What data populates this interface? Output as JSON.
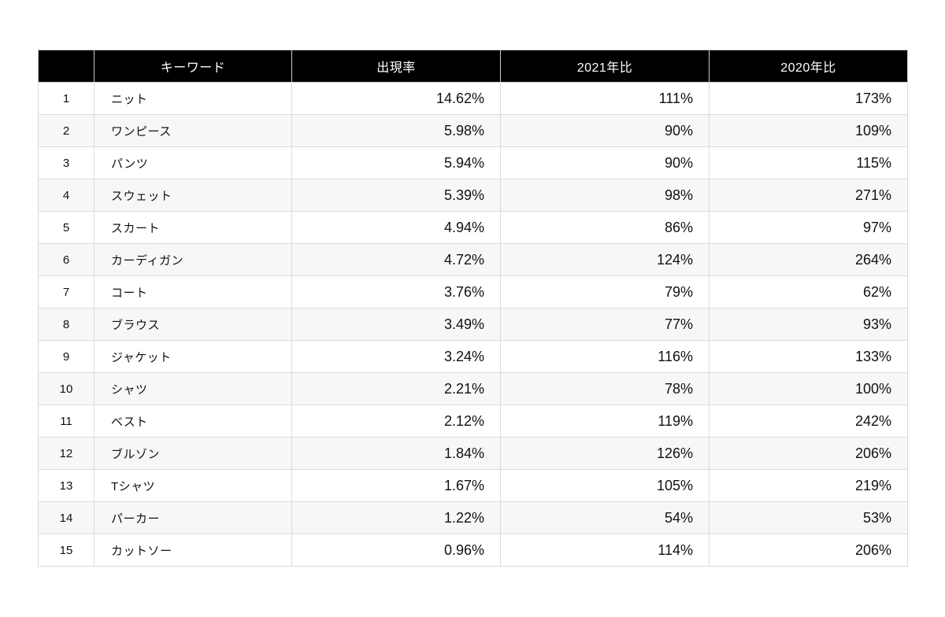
{
  "chart_data": {
    "type": "table",
    "title": "",
    "columns": [
      {
        "id": "rank",
        "label": ""
      },
      {
        "id": "keyword",
        "label": "キーワード"
      },
      {
        "id": "rate",
        "label": "出現率"
      },
      {
        "id": "vs2021",
        "label": "2021年比"
      },
      {
        "id": "vs2020",
        "label": "2020年比"
      }
    ],
    "rows": [
      {
        "rank": "1",
        "keyword": "ニット",
        "rate": "14.62%",
        "vs2021": "111%",
        "vs2020": "173%"
      },
      {
        "rank": "2",
        "keyword": "ワンピース",
        "rate": "5.98%",
        "vs2021": "90%",
        "vs2020": "109%"
      },
      {
        "rank": "3",
        "keyword": "パンツ",
        "rate": "5.94%",
        "vs2021": "90%",
        "vs2020": "115%"
      },
      {
        "rank": "4",
        "keyword": "スウェット",
        "rate": "5.39%",
        "vs2021": "98%",
        "vs2020": "271%"
      },
      {
        "rank": "5",
        "keyword": "スカート",
        "rate": "4.94%",
        "vs2021": "86%",
        "vs2020": "97%"
      },
      {
        "rank": "6",
        "keyword": "カーディガン",
        "rate": "4.72%",
        "vs2021": "124%",
        "vs2020": "264%"
      },
      {
        "rank": "7",
        "keyword": "コート",
        "rate": "3.76%",
        "vs2021": "79%",
        "vs2020": "62%"
      },
      {
        "rank": "8",
        "keyword": "ブラウス",
        "rate": "3.49%",
        "vs2021": "77%",
        "vs2020": "93%"
      },
      {
        "rank": "9",
        "keyword": "ジャケット",
        "rate": "3.24%",
        "vs2021": "116%",
        "vs2020": "133%"
      },
      {
        "rank": "10",
        "keyword": "シャツ",
        "rate": "2.21%",
        "vs2021": "78%",
        "vs2020": "100%"
      },
      {
        "rank": "11",
        "keyword": "ベスト",
        "rate": "2.12%",
        "vs2021": "119%",
        "vs2020": "242%"
      },
      {
        "rank": "12",
        "keyword": "ブルゾン",
        "rate": "1.84%",
        "vs2021": "126%",
        "vs2020": "206%"
      },
      {
        "rank": "13",
        "keyword": "Tシャツ",
        "rate": "1.67%",
        "vs2021": "105%",
        "vs2020": "219%"
      },
      {
        "rank": "14",
        "keyword": "パーカー",
        "rate": "1.22%",
        "vs2021": "54%",
        "vs2020": "53%"
      },
      {
        "rank": "15",
        "keyword": "カットソー",
        "rate": "0.96%",
        "vs2021": "114%",
        "vs2020": "206%"
      }
    ],
    "layout": {
      "header_bg": "#000000",
      "header_text_color": "#ffffff",
      "zebra_row_bg": "#f7f7f7",
      "border_color": "#dcdcdc",
      "numeric_alignment": "right"
    }
  }
}
